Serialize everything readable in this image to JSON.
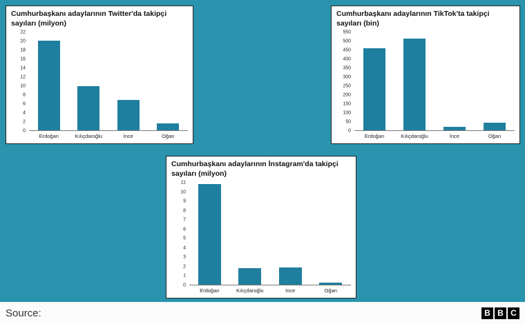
{
  "colors": {
    "background": "#2a93ad",
    "bar": "#1f7f9e",
    "card_border": "#222222",
    "footer_bg": "#fcfcfc"
  },
  "footer": {
    "source_label": "Source:",
    "logo_letters": [
      "B",
      "B",
      "C"
    ]
  },
  "chart_data": [
    {
      "id": "twitter",
      "type": "bar",
      "title": "Cumhurbaşkanı adaylarının Twitter'da takipçi sayıları (milyon)",
      "categories": [
        "Erdoğan",
        "Kılıçdaroğlu",
        "İnce",
        "Oğan"
      ],
      "values": [
        20.2,
        10,
        6.9,
        1.5
      ],
      "xlabel": "",
      "ylabel": "",
      "ylim": [
        0,
        22
      ],
      "ytick_step": 2,
      "grid": false,
      "legend": false
    },
    {
      "id": "tiktok",
      "type": "bar",
      "title": "Cumhurbaşkanı adaylarının TikTok'ta takipçi sayıları (bin)",
      "categories": [
        "Erdoğan",
        "Kılıçdaroğlu",
        "İnce",
        "Oğan"
      ],
      "values": [
        460,
        515,
        20,
        42
      ],
      "xlabel": "",
      "ylabel": "",
      "ylim": [
        0,
        550
      ],
      "ytick_step": 50,
      "grid": false,
      "legend": false
    },
    {
      "id": "instagram",
      "type": "bar",
      "title": "Cumhurbaşkanı adaylarının İnstagram'da takipçi sayıları (milyon)",
      "categories": [
        "Erdoğan",
        "Kılıçdaroğlu",
        "İnce",
        "Oğan"
      ],
      "values": [
        10.9,
        1.8,
        1.9,
        0.2
      ],
      "xlabel": "",
      "ylabel": "",
      "ylim": [
        0,
        11
      ],
      "ytick_step": 1,
      "grid": false,
      "legend": false
    }
  ]
}
